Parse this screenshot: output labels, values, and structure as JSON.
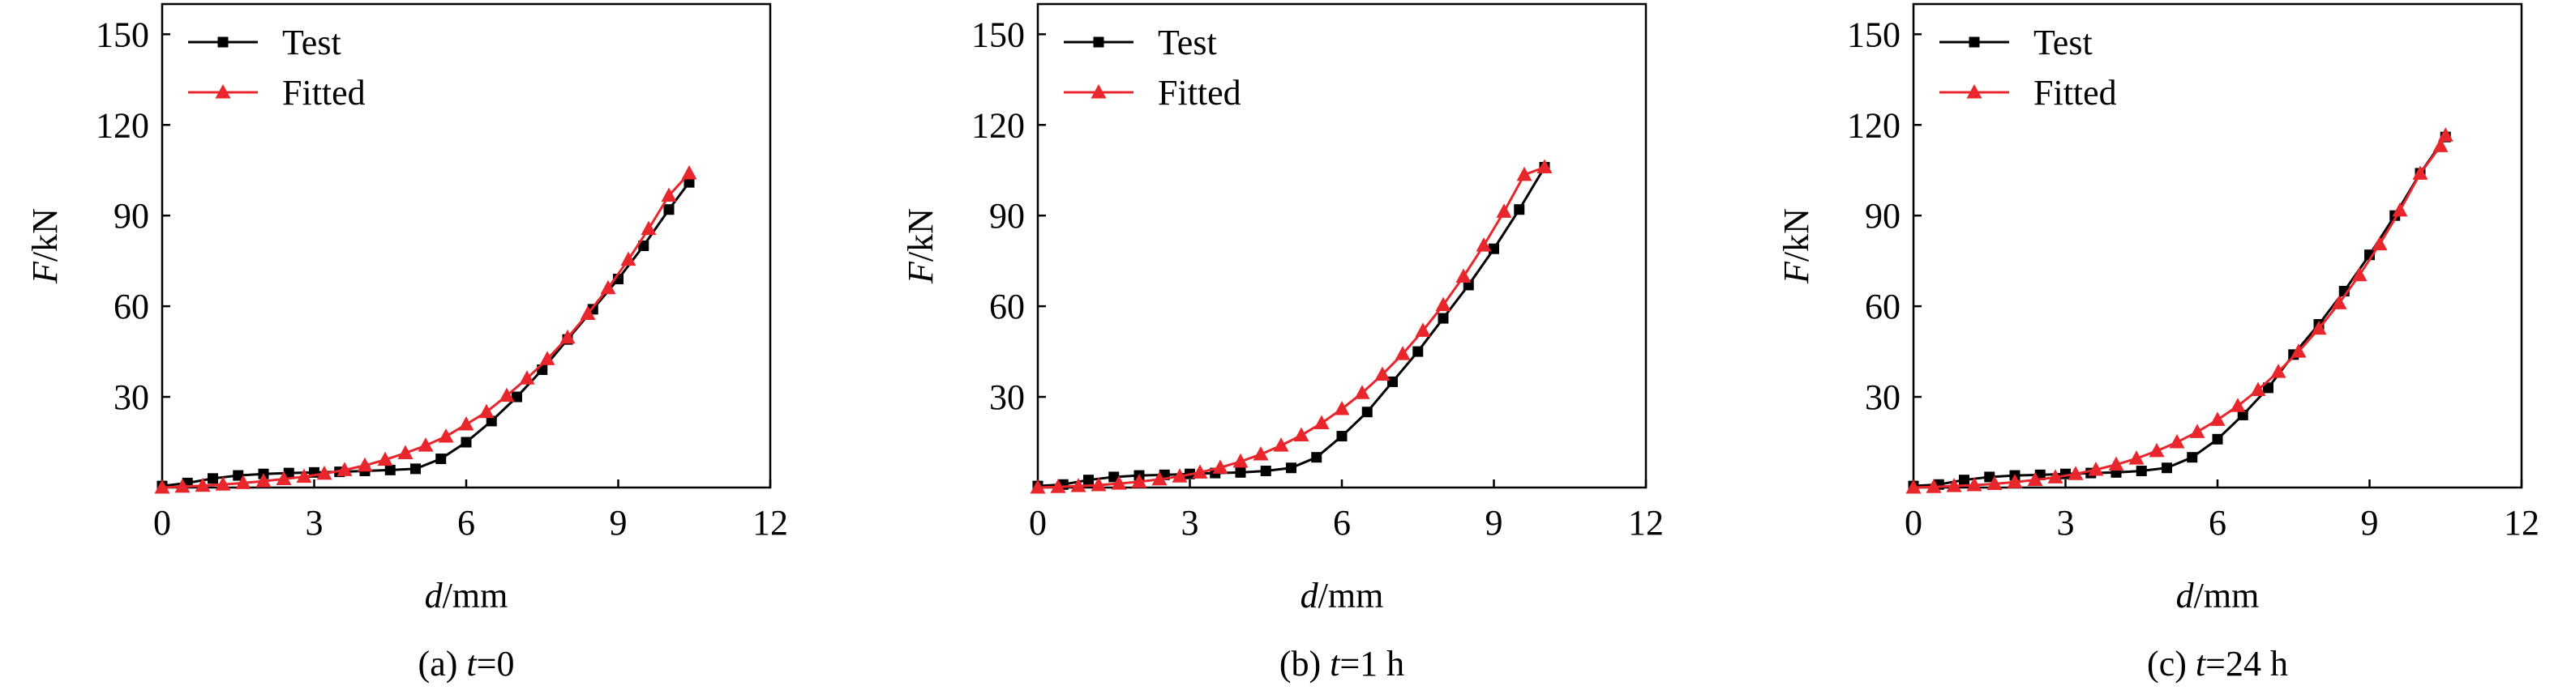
{
  "chart_data": [
    {
      "type": "line",
      "caption_label": "(a) ",
      "caption_var": "t",
      "caption_rest": "=0",
      "xlabel_var": "d",
      "xlabel_unit": "/mm",
      "ylabel_var": "F",
      "ylabel_unit": "/kN",
      "xlim": [
        0,
        12
      ],
      "ylim": [
        0,
        160
      ],
      "xticks": [
        0,
        3,
        6,
        9,
        12
      ],
      "yticks": [
        30,
        60,
        90,
        120,
        150
      ],
      "grid": false,
      "legend_position": "top-left",
      "series": [
        {
          "name": "Test",
          "color": "#000000",
          "marker": "square",
          "x": [
            0.0,
            0.5,
            1.0,
            1.5,
            2.0,
            2.5,
            3.0,
            3.5,
            4.0,
            4.5,
            5.0,
            5.5,
            6.0,
            6.5,
            7.0,
            7.5,
            8.0,
            8.5,
            9.0,
            9.5,
            10.0,
            10.4
          ],
          "y": [
            0.5,
            1.5,
            3.0,
            4.0,
            4.5,
            4.8,
            5.0,
            5.2,
            5.5,
            5.8,
            6.2,
            9.5,
            15.0,
            22.0,
            30.0,
            39.0,
            49.0,
            59.0,
            69.0,
            80.0,
            92.0,
            101.0
          ]
        },
        {
          "name": "Fitted",
          "color": "#e8262b",
          "marker": "triangle",
          "x": [
            0.0,
            0.4,
            0.8,
            1.2,
            1.6,
            2.0,
            2.4,
            2.8,
            3.2,
            3.6,
            4.0,
            4.4,
            4.8,
            5.2,
            5.6,
            6.0,
            6.4,
            6.8,
            7.2,
            7.6,
            8.0,
            8.4,
            8.8,
            9.2,
            9.6,
            10.0,
            10.4
          ],
          "y": [
            0.0,
            0.3,
            0.6,
            1.0,
            1.5,
            2.1,
            2.8,
            3.6,
            4.6,
            5.8,
            7.3,
            9.2,
            11.4,
            13.9,
            16.9,
            20.9,
            25.0,
            30.4,
            36.1,
            42.5,
            49.6,
            57.5,
            66.0,
            75.4,
            85.6,
            96.6,
            104.0
          ]
        }
      ]
    },
    {
      "type": "line",
      "caption_label": "(b) ",
      "caption_var": "t",
      "caption_rest": "=1 h",
      "xlabel_var": "d",
      "xlabel_unit": "/mm",
      "ylabel_var": "F",
      "ylabel_unit": "/kN",
      "xlim": [
        0,
        12
      ],
      "ylim": [
        0,
        160
      ],
      "xticks": [
        0,
        3,
        6,
        9,
        12
      ],
      "yticks": [
        30,
        60,
        90,
        120,
        150
      ],
      "grid": false,
      "legend_position": "top-left",
      "series": [
        {
          "name": "Test",
          "color": "#000000",
          "marker": "square",
          "x": [
            0.0,
            0.5,
            1.0,
            1.5,
            2.0,
            2.5,
            3.0,
            3.5,
            4.0,
            4.5,
            5.0,
            5.5,
            6.0,
            6.5,
            7.0,
            7.5,
            8.0,
            8.5,
            9.0,
            9.5,
            10.0
          ],
          "y": [
            0.5,
            1.0,
            2.5,
            3.5,
            4.0,
            4.2,
            4.5,
            4.8,
            5.0,
            5.5,
            6.5,
            10.0,
            17.0,
            25.0,
            35.0,
            45.0,
            56.0,
            67.0,
            79.0,
            92.0,
            106.0
          ]
        },
        {
          "name": "Fitted",
          "color": "#e8262b",
          "marker": "triangle",
          "x": [
            0.0,
            0.4,
            0.8,
            1.2,
            1.6,
            2.0,
            2.4,
            2.8,
            3.2,
            3.6,
            4.0,
            4.4,
            4.8,
            5.2,
            5.6,
            6.0,
            6.4,
            6.8,
            7.2,
            7.6,
            8.0,
            8.4,
            8.8,
            9.2,
            9.6,
            10.0
          ],
          "y": [
            0.0,
            0.2,
            0.5,
            0.8,
            1.3,
            1.9,
            2.7,
            3.7,
            5.0,
            6.6,
            8.6,
            11.0,
            13.9,
            17.3,
            21.3,
            26.0,
            31.3,
            37.4,
            44.2,
            51.9,
            60.4,
            69.8,
            80.1,
            91.3,
            103.5,
            106.0
          ]
        }
      ]
    },
    {
      "type": "line",
      "caption_label": "(c) ",
      "caption_var": "t",
      "caption_rest": "=24 h",
      "xlabel_var": "d",
      "xlabel_unit": "/mm",
      "ylabel_var": "F",
      "ylabel_unit": "/kN",
      "xlim": [
        0,
        12
      ],
      "ylim": [
        0,
        160
      ],
      "xticks": [
        0,
        3,
        6,
        9,
        12
      ],
      "yticks": [
        30,
        60,
        90,
        120,
        150
      ],
      "grid": false,
      "legend_position": "top-left",
      "series": [
        {
          "name": "Test",
          "color": "#000000",
          "marker": "square",
          "x": [
            0.0,
            0.5,
            1.0,
            1.5,
            2.0,
            2.5,
            3.0,
            3.5,
            4.0,
            4.5,
            5.0,
            5.5,
            6.0,
            6.5,
            7.0,
            7.5,
            8.0,
            8.5,
            9.0,
            9.5,
            10.0,
            10.5
          ],
          "y": [
            0.5,
            1.0,
            2.5,
            3.5,
            4.0,
            4.2,
            4.5,
            4.8,
            5.0,
            5.5,
            6.5,
            10.0,
            16.0,
            24.0,
            33.0,
            44.0,
            54.0,
            65.0,
            77.0,
            90.0,
            104.0,
            116.0
          ]
        },
        {
          "name": "Fitted",
          "color": "#e8262b",
          "marker": "triangle",
          "x": [
            0.0,
            0.4,
            0.8,
            1.2,
            1.6,
            2.0,
            2.4,
            2.8,
            3.2,
            3.6,
            4.0,
            4.4,
            4.8,
            5.2,
            5.6,
            6.0,
            6.4,
            6.8,
            7.2,
            7.6,
            8.0,
            8.4,
            8.8,
            9.2,
            9.6,
            10.0,
            10.4,
            10.5
          ],
          "y": [
            0.0,
            0.2,
            0.5,
            0.8,
            1.2,
            1.8,
            2.5,
            3.4,
            4.5,
            5.9,
            7.6,
            9.6,
            12.1,
            15.0,
            18.4,
            22.4,
            27.0,
            32.3,
            38.3,
            45.0,
            52.6,
            61.0,
            70.3,
            80.5,
            91.7,
            103.9,
            113.0,
            116.5
          ]
        }
      ]
    }
  ]
}
